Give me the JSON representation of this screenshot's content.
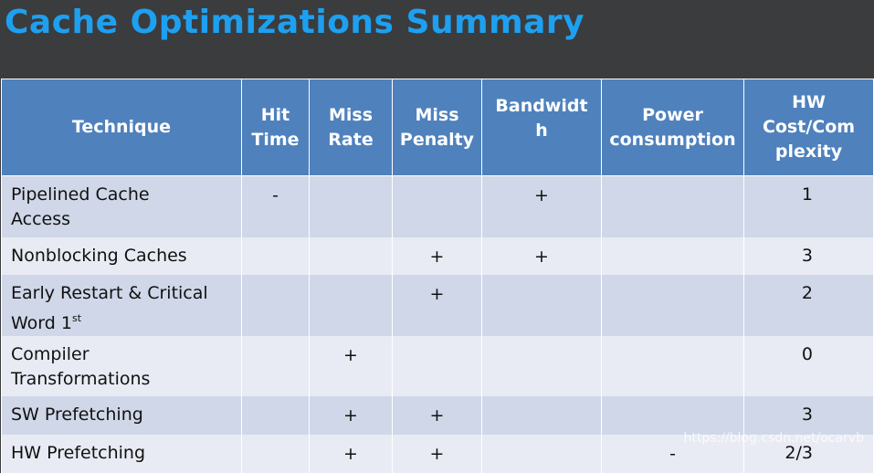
{
  "title": "Cache Optimizations Summary",
  "headers": [
    "Technique",
    "Hit Time",
    "Miss Rate",
    "Miss Penalty",
    "Bandwidth",
    "Power consumption",
    "HW Cost/Complexity"
  ],
  "header_lines": [
    [
      "Technique"
    ],
    [
      "Hit",
      "Time"
    ],
    [
      "Miss",
      "Rate"
    ],
    [
      "Miss",
      "Penalty"
    ],
    [
      "Bandwidt",
      "h"
    ],
    [
      "Power",
      "consumption"
    ],
    [
      "HW",
      "Cost/Com",
      "plexity"
    ]
  ],
  "rows": [
    {
      "technique": [
        "Pipelined Cache",
        "Access"
      ],
      "hit_time": "-",
      "miss_rate": "",
      "miss_penalty": "",
      "bandwidth": "+",
      "power": "",
      "cost": "1"
    },
    {
      "technique": [
        "Nonblocking Caches"
      ],
      "hit_time": "",
      "miss_rate": "",
      "miss_penalty": "+",
      "bandwidth": "+",
      "power": "",
      "cost": "3"
    },
    {
      "technique": [
        "Early Restart & Critical",
        "Word 1"
      ],
      "technique_sup": "st",
      "hit_time": "",
      "miss_rate": "",
      "miss_penalty": "+",
      "bandwidth": "",
      "power": "",
      "cost": "2"
    },
    {
      "technique": [
        "Compiler",
        "Transformations"
      ],
      "hit_time": "",
      "miss_rate": "+",
      "miss_penalty": "",
      "bandwidth": "",
      "power": "",
      "cost": "0"
    },
    {
      "technique": [
        "SW Prefetching"
      ],
      "hit_time": "",
      "miss_rate": "+",
      "miss_penalty": "+",
      "bandwidth": "",
      "power": "",
      "cost": "3"
    },
    {
      "technique": [
        "HW Prefetching"
      ],
      "hit_time": "",
      "miss_rate": "+",
      "miss_penalty": "+",
      "bandwidth": "",
      "power": "-",
      "cost": "2/3"
    }
  ],
  "watermark": "https://blog.csdn.net/ocarvb"
}
